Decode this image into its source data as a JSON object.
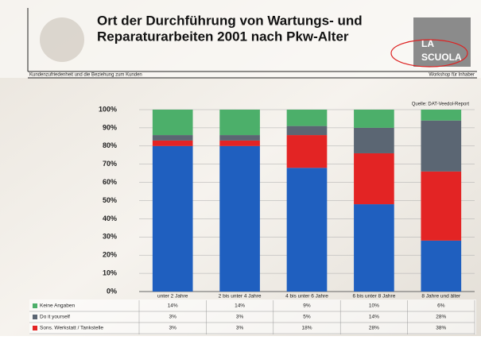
{
  "header": {
    "logo": [
      "LA",
      "SCUOLA"
    ],
    "left_caption": "Kundenzufriedenheit und die Beziehung zum Kunden",
    "right_caption": "Workshop für Inhaber"
  },
  "chart_data": {
    "type": "stacked_bar",
    "title": [
      "Ort der Durchführung von Wartungs- und",
      "Reparaturarbeiten 2001 nach Pkw-Alter"
    ],
    "source": "Quelle: DAT-Veedol-Report",
    "categories": [
      "unter 2 Jahre",
      "2 bis unter 4 Jahre",
      "4 bis unter 6 Jahre",
      "6 bis unter 8 Jahre",
      "8 Jahre und älter"
    ],
    "series": [
      {
        "name": "Keine Angaben",
        "color": "#4caf6a",
        "values": [
          14,
          14,
          9,
          10,
          6
        ],
        "value_labels": [
          "14%",
          "14%",
          "9%",
          "10%",
          "6%"
        ]
      },
      {
        "name": "Do it yourself",
        "color": "#5b6673",
        "values": [
          3,
          3,
          5,
          14,
          28
        ],
        "value_labels": [
          "3%",
          "3%",
          "5%",
          "14%",
          "28%"
        ]
      },
      {
        "name": "Sons. Werkstatt / Tankstelle",
        "color": "#e32424",
        "values": [
          3,
          3,
          18,
          28,
          38
        ],
        "value_labels": [
          "3%",
          "3%",
          "18%",
          "28%",
          "38%"
        ]
      },
      {
        "color": "#1f5fbf",
        "values": [
          80,
          80,
          68,
          48,
          28
        ]
      }
    ],
    "ylim": [
      0,
      100
    ],
    "yticks": [
      {
        "value": 0,
        "label": "0%"
      },
      {
        "value": 10,
        "label": "10%"
      },
      {
        "value": 20,
        "label": "20%"
      },
      {
        "value": 30,
        "label": "30%"
      },
      {
        "value": 40,
        "label": "40%"
      },
      {
        "value": 50,
        "label": "50%"
      },
      {
        "value": 60,
        "label": "60%"
      },
      {
        "value": 70,
        "label": "70%"
      },
      {
        "value": 80,
        "label": "80%"
      },
      {
        "value": 90,
        "label": "90%"
      },
      {
        "value": 100,
        "label": "100%"
      }
    ],
    "grid": true
  }
}
